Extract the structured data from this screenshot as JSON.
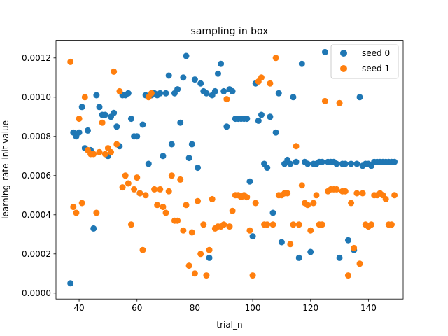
{
  "chart_data": {
    "type": "scatter",
    "title": "sampling in box",
    "xlabel": "trial_n",
    "ylabel": "learning_rate_init value",
    "xlim": [
      32,
      152
    ],
    "ylim": [
      -3e-05,
      0.00129
    ],
    "xticks": [
      40,
      60,
      80,
      100,
      120,
      140
    ],
    "xtick_labels": [
      "40",
      "60",
      "80",
      "100",
      "120",
      "140"
    ],
    "yticks": [
      0.0,
      0.0002,
      0.0004,
      0.0006,
      0.0008,
      0.001,
      0.0012
    ],
    "ytick_labels": [
      "0.0000",
      "0.0002",
      "0.0004",
      "0.0006",
      "0.0008",
      "0.0010",
      "0.0012"
    ],
    "grid": false,
    "legend": {
      "position": "top-right",
      "entries": [
        "seed 0",
        "seed 1"
      ]
    },
    "series": [
      {
        "name": "seed 0",
        "color": "#1f77b4",
        "points": [
          [
            37,
            5e-05
          ],
          [
            38,
            0.00082
          ],
          [
            39,
            0.0008
          ],
          [
            40,
            0.00082
          ],
          [
            41,
            0.00095
          ],
          [
            42,
            0.00074
          ],
          [
            43,
            0.00083
          ],
          [
            44,
            0.00073
          ],
          [
            45,
            0.00033
          ],
          [
            46,
            0.00101
          ],
          [
            47,
            0.00095
          ],
          [
            48,
            0.00091
          ],
          [
            49,
            0.00091
          ],
          [
            50,
            0.0007
          ],
          [
            51,
            0.0009
          ],
          [
            52,
            0.00092
          ],
          [
            53,
            0.00085
          ],
          [
            54,
            0.00075
          ],
          [
            55,
            0.00101
          ],
          [
            56,
            0.00101
          ],
          [
            57,
            0.00102
          ],
          [
            58,
            0.00089
          ],
          [
            59,
            0.0008
          ],
          [
            60,
            0.0008
          ],
          [
            61,
            0.00051
          ],
          [
            62,
            0.00086
          ],
          [
            63,
            0.00101
          ],
          [
            64,
            0.00066
          ],
          [
            65,
            0.00101
          ],
          [
            66,
            0.00102
          ],
          [
            67,
            0.00101
          ],
          [
            68,
            0.00102
          ],
          [
            69,
            0.0007
          ],
          [
            70,
            0.00102
          ],
          [
            71,
            0.00111
          ],
          [
            72,
            0.00076
          ],
          [
            73,
            0.00102
          ],
          [
            74,
            0.00104
          ],
          [
            75,
            0.00087
          ],
          [
            76,
            0.0011
          ],
          [
            77,
            0.00121
          ],
          [
            78,
            0.00069
          ],
          [
            79,
            0.00076
          ],
          [
            80,
            0.00109
          ],
          [
            81,
            0.00064
          ],
          [
            82,
            0.00107
          ],
          [
            83,
            0.00103
          ],
          [
            84,
            0.00102
          ],
          [
            85,
            0.00018
          ],
          [
            86,
            0.00101
          ],
          [
            87,
            0.00103
          ],
          [
            88,
            0.00112
          ],
          [
            89,
            0.00117
          ],
          [
            90,
            0.00103
          ],
          [
            91,
            0.00085
          ],
          [
            92,
            0.00104
          ],
          [
            93,
            0.00103
          ],
          [
            94,
            0.00089
          ],
          [
            95,
            0.00089
          ],
          [
            96,
            0.00089
          ],
          [
            97,
            0.00089
          ],
          [
            98,
            0.00089
          ],
          [
            99,
            0.00057
          ],
          [
            100,
            0.00029
          ],
          [
            101,
            0.00107
          ],
          [
            102,
            0.00088
          ],
          [
            103,
            0.00091
          ],
          [
            104,
            0.00066
          ],
          [
            105,
            0.00064
          ],
          [
            106,
            0.0009
          ],
          [
            107,
            0.00041
          ],
          [
            108,
            0.00082
          ],
          [
            109,
            0.00102
          ],
          [
            110,
            0.00026
          ],
          [
            111,
            0.00066
          ],
          [
            112,
            0.00068
          ],
          [
            113,
            0.00066
          ],
          [
            114,
            0.001
          ],
          [
            115,
            0.00067
          ],
          [
            116,
            0.00018
          ],
          [
            117,
            0.00117
          ],
          [
            118,
            0.00067
          ],
          [
            119,
            0.00066
          ],
          [
            120,
            0.00021
          ],
          [
            121,
            0.00066
          ],
          [
            122,
            0.00066
          ],
          [
            123,
            0.00067
          ],
          [
            124,
            0.00067
          ],
          [
            125,
            0.00123
          ],
          [
            126,
            0.00067
          ],
          [
            127,
            0.00067
          ],
          [
            128,
            0.00067
          ],
          [
            129,
            0.00066
          ],
          [
            130,
            0.00018
          ],
          [
            131,
            0.00066
          ],
          [
            132,
            0.00066
          ],
          [
            133,
            0.00027
          ],
          [
            134,
            0.00066
          ],
          [
            135,
            0.00022
          ],
          [
            136,
            0.00066
          ],
          [
            137,
            0.001
          ],
          [
            138,
            0.00065
          ],
          [
            139,
            0.00066
          ],
          [
            140,
            0.00066
          ],
          [
            141,
            0.00065
          ],
          [
            142,
            0.00067
          ],
          [
            143,
            0.00067
          ],
          [
            144,
            0.00067
          ],
          [
            145,
            0.00067
          ],
          [
            146,
            0.00067
          ],
          [
            147,
            0.00067
          ],
          [
            148,
            0.00067
          ],
          [
            149,
            0.00067
          ]
        ]
      },
      {
        "name": "seed 1",
        "color": "#ff7f0e",
        "points": [
          [
            37,
            0.00118
          ],
          [
            38,
            0.00044
          ],
          [
            39,
            0.00041
          ],
          [
            40,
            0.00089
          ],
          [
            41,
            0.00046
          ],
          [
            42,
            0.001
          ],
          [
            43,
            0.00073
          ],
          [
            44,
            0.00071
          ],
          [
            45,
            0.00071
          ],
          [
            46,
            0.00041
          ],
          [
            47,
            0.00072
          ],
          [
            48,
            0.00087
          ],
          [
            49,
            0.00071
          ],
          [
            50,
            0.00074
          ],
          [
            51,
            0.00072
          ],
          [
            52,
            0.00113
          ],
          [
            53,
            0.00076
          ],
          [
            54,
            0.00103
          ],
          [
            55,
            0.00054
          ],
          [
            56,
            0.0006
          ],
          [
            57,
            0.00056
          ],
          [
            58,
            0.00035
          ],
          [
            59,
            0.00053
          ],
          [
            60,
            0.00059
          ],
          [
            61,
            0.00051
          ],
          [
            62,
            0.00022
          ],
          [
            63,
            0.0005
          ],
          [
            64,
            0.001
          ],
          [
            65,
            0.00102
          ],
          [
            66,
            0.00053
          ],
          [
            67,
            0.00045
          ],
          [
            68,
            0.00053
          ],
          [
            69,
            0.00044
          ],
          [
            70,
            0.00041
          ],
          [
            71,
            0.00052
          ],
          [
            72,
            0.0006
          ],
          [
            73,
            0.00037
          ],
          [
            74,
            0.00037
          ],
          [
            75,
            0.00058
          ],
          [
            76,
            0.00032
          ],
          [
            77,
            0.00045
          ],
          [
            78,
            0.00014
          ],
          [
            79,
            0.00031
          ],
          [
            80,
            0.0001
          ],
          [
            81,
            0.00047
          ],
          [
            82,
            0.0002
          ],
          [
            83,
            0.00035
          ],
          [
            84,
            9e-05
          ],
          [
            85,
            0.00022
          ],
          [
            86,
            0.00048
          ],
          [
            87,
            0.00033
          ],
          [
            88,
            0.00034
          ],
          [
            89,
            0.00034
          ],
          [
            90,
            0.00035
          ],
          [
            91,
            0.00099
          ],
          [
            92,
            0.00034
          ],
          [
            93,
            0.00042
          ],
          [
            94,
            0.0005
          ],
          [
            95,
            0.0005
          ],
          [
            96,
            0.00049
          ],
          [
            97,
            0.0005
          ],
          [
            98,
            0.00049
          ],
          [
            99,
            0.00032
          ],
          [
            100,
            9e-05
          ],
          [
            101,
            0.00046
          ],
          [
            102,
            0.00108
          ],
          [
            103,
            0.0011
          ],
          [
            104,
            0.00035
          ],
          [
            105,
            0.00035
          ],
          [
            106,
            0.00107
          ],
          [
            107,
            0.00035
          ],
          [
            108,
            0.0012
          ],
          [
            109,
            0.0005
          ],
          [
            110,
            0.0005
          ],
          [
            111,
            0.00051
          ],
          [
            112,
            0.00051
          ],
          [
            113,
            0.00025
          ],
          [
            114,
            0.00035
          ],
          [
            115,
            0.00075
          ],
          [
            116,
            0.00035
          ],
          [
            117,
            0.00055
          ],
          [
            118,
            0.00046
          ],
          [
            119,
            0.00045
          ],
          [
            120,
            0.00032
          ],
          [
            121,
            0.00046
          ],
          [
            122,
            0.0005
          ],
          [
            123,
            0.00035
          ],
          [
            124,
            0.00035
          ],
          [
            125,
            0.00098
          ],
          [
            126,
            0.00052
          ],
          [
            127,
            0.00053
          ],
          [
            128,
            0.00053
          ],
          [
            129,
            0.00053
          ],
          [
            130,
            0.00097
          ],
          [
            131,
            0.00052
          ],
          [
            132,
            0.00052
          ],
          [
            133,
            9e-05
          ],
          [
            134,
            0.00046
          ],
          [
            135,
            0.00023
          ],
          [
            136,
            0.00051
          ],
          [
            137,
            0.00015
          ],
          [
            138,
            0.00051
          ],
          [
            139,
            0.00035
          ],
          [
            140,
            0.00034
          ],
          [
            141,
            0.00035
          ],
          [
            142,
            0.0005
          ],
          [
            143,
            0.0005
          ],
          [
            144,
            0.00051
          ],
          [
            145,
            0.0005
          ],
          [
            146,
            0.00048
          ],
          [
            147,
            0.00035
          ],
          [
            148,
            0.00035
          ],
          [
            149,
            0.0005
          ]
        ]
      }
    ]
  }
}
